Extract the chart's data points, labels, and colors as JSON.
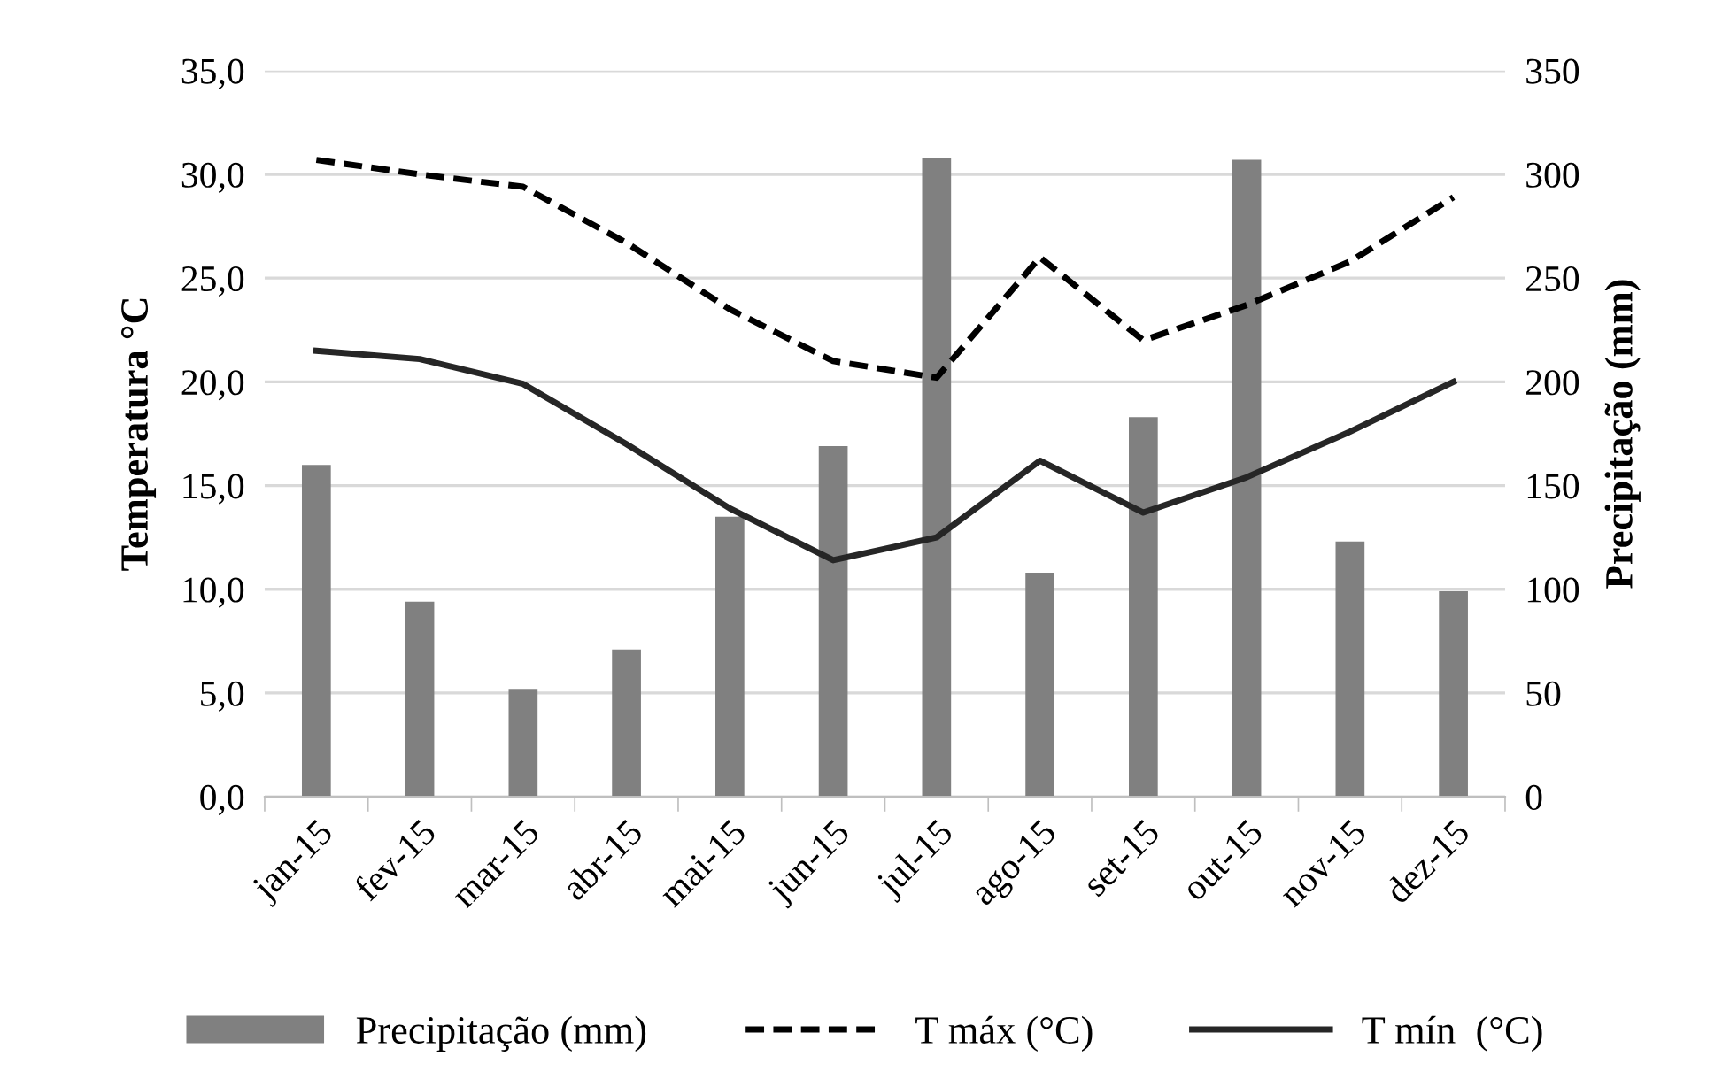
{
  "chart_data": {
    "type": "bar",
    "xlabel": null,
    "ylabel": "Temperatura °C",
    "y2label": "Precipitação (mm)",
    "categories": [
      "jan-15",
      "fev-15",
      "mar-15",
      "abr-15",
      "mai-15",
      "jun-15",
      "jul-15",
      "ago-15",
      "set-15",
      "out-15",
      "nov-15",
      "dez-15"
    ],
    "series": [
      {
        "name": "Precipitação (mm)",
        "axis": "y2",
        "color": "#808080",
        "values": [
          160,
          94,
          52,
          71,
          135,
          169,
          308,
          108,
          183,
          307,
          123,
          99
        ]
      },
      {
        "name": "T máx (°C)",
        "type": "line",
        "line_style": "dashed",
        "color": "#000000",
        "values": [
          30.7,
          30.0,
          29.4,
          26.7,
          23.5,
          21.0,
          20.2,
          26.0,
          22.0,
          23.7,
          25.8,
          28.9
        ]
      },
      {
        "name": "T mín  (°C)",
        "type": "line",
        "line_style": "solid",
        "color": "#262626",
        "values": [
          21.5,
          21.1,
          19.9,
          17.0,
          13.9,
          11.4,
          12.5,
          16.2,
          13.7,
          15.4,
          17.6,
          20.0
        ]
      }
    ],
    "ylim": [
      0,
      35
    ],
    "yticks": [
      {
        "value": 0,
        "label": "0,0"
      },
      {
        "value": 5,
        "label": "5,0"
      },
      {
        "value": 10,
        "label": "10,0"
      },
      {
        "value": 15,
        "label": "15,0"
      },
      {
        "value": 20,
        "label": "20,0"
      },
      {
        "value": 25,
        "label": "25,0"
      },
      {
        "value": 30,
        "label": "30,0"
      },
      {
        "value": 35,
        "label": "35,0"
      }
    ],
    "y2lim": [
      0,
      350
    ],
    "y2ticks": [
      0,
      50,
      100,
      150,
      200,
      250,
      300,
      350
    ],
    "grid": "y",
    "legend": "bottom",
    "marker": "none"
  }
}
